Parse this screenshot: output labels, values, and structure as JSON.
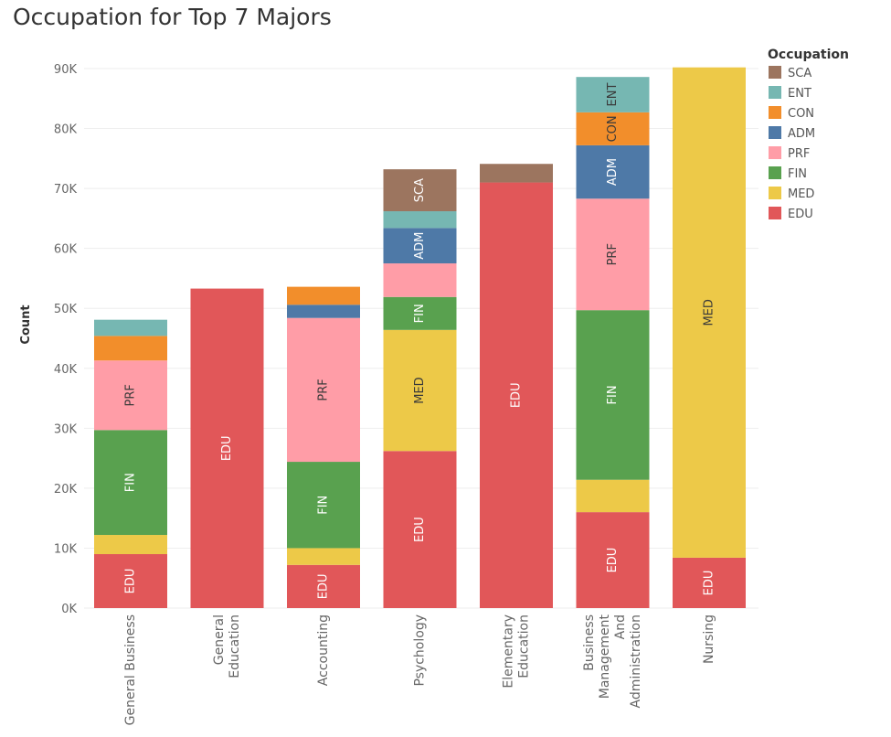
{
  "chart_data": {
    "type": "bar",
    "stacked": true,
    "title": "Occupation for Top 7 Majors",
    "xlabel": "",
    "ylabel": "Count",
    "ylim": [
      0,
      90000
    ],
    "yticks": [
      0,
      10000,
      20000,
      30000,
      40000,
      50000,
      60000,
      70000,
      80000,
      90000
    ],
    "ytick_labels": [
      "0K",
      "10K",
      "20K",
      "30K",
      "40K",
      "50K",
      "60K",
      "70K",
      "80K",
      "90K"
    ],
    "grid": true,
    "legend": {
      "title": "Occupation",
      "position": "top-right",
      "order": [
        "SCA",
        "ENT",
        "CON",
        "ADM",
        "PRF",
        "FIN",
        "MED",
        "EDU"
      ]
    },
    "categories": [
      [
        "General Business"
      ],
      [
        "General",
        "Education"
      ],
      [
        "Accounting"
      ],
      [
        "Psychology"
      ],
      [
        "Elementary",
        "Education"
      ],
      [
        "Business",
        "Management",
        "And",
        "Administration"
      ],
      [
        "Nursing"
      ]
    ],
    "series": [
      {
        "name": "EDU",
        "color": "#e15759",
        "values": [
          9000,
          53300,
          7200,
          26200,
          71000,
          16000,
          8400
        ]
      },
      {
        "name": "MED",
        "color": "#edc948",
        "values": [
          3200,
          0,
          2800,
          20200,
          0,
          5400,
          81800
        ]
      },
      {
        "name": "FIN",
        "color": "#59a14f",
        "values": [
          17500,
          0,
          14400,
          5500,
          0,
          28300,
          0
        ]
      },
      {
        "name": "PRF",
        "color": "#ff9da7",
        "values": [
          11600,
          0,
          24000,
          5600,
          0,
          18600,
          0
        ]
      },
      {
        "name": "ADM",
        "color": "#4e79a7",
        "values": [
          0,
          0,
          2200,
          5900,
          0,
          8900,
          0
        ]
      },
      {
        "name": "CON",
        "color": "#f28e2b",
        "values": [
          4100,
          0,
          3000,
          0,
          0,
          5500,
          0
        ]
      },
      {
        "name": "ENT",
        "color": "#76b7b2",
        "values": [
          2700,
          0,
          0,
          2800,
          0,
          5900,
          0
        ]
      },
      {
        "name": "SCA",
        "color": "#9c755f",
        "values": [
          0,
          0,
          0,
          7000,
          3100,
          0,
          0
        ]
      }
    ],
    "segment_labels": [
      [
        "EDU",
        "",
        "FIN",
        "PRF",
        "",
        "",
        "",
        ""
      ],
      [
        "EDU",
        "",
        "",
        "",
        "",
        "",
        "",
        ""
      ],
      [
        "EDU",
        "",
        "FIN",
        "PRF",
        "",
        "",
        "",
        ""
      ],
      [
        "EDU",
        "MED",
        "FIN",
        "",
        "ADM",
        "",
        "",
        "SCA"
      ],
      [
        "EDU",
        "",
        "",
        "",
        "",
        "",
        "",
        ""
      ],
      [
        "EDU",
        "",
        "FIN",
        "PRF",
        "ADM",
        "CON",
        "ENT",
        ""
      ],
      [
        "EDU",
        "MED",
        "",
        "",
        "",
        "",
        "",
        ""
      ]
    ]
  }
}
